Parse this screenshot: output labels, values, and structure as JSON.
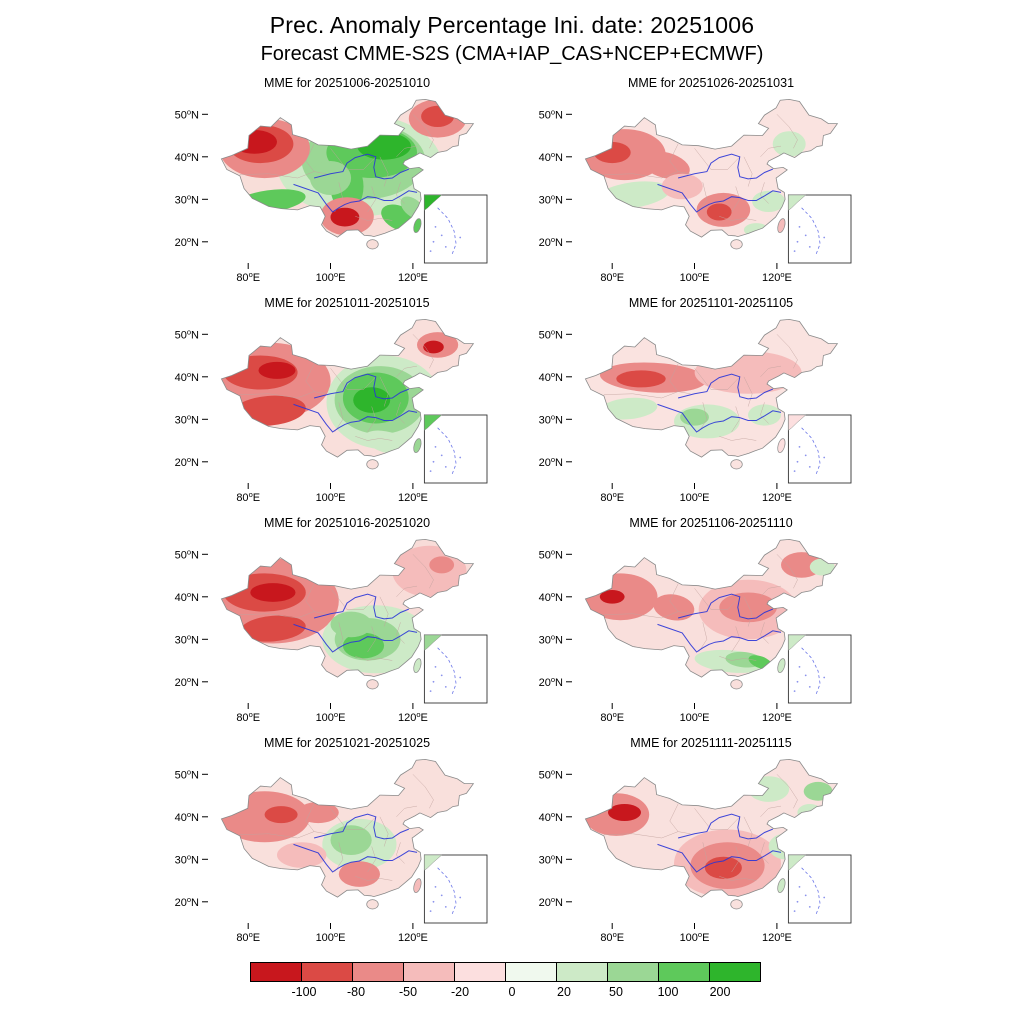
{
  "title": "Prec. Anomaly Percentage Ini. date: 20251006",
  "subtitle": "Forecast CMME-S2S (CMA+IAP_CAS+NCEP+ECMWF)",
  "chart_data": {
    "type": "heatmap",
    "variable": "Precipitation anomaly percentage (%)",
    "region": "China",
    "extent": {
      "lon": [
        70,
        138
      ],
      "lat": [
        15,
        55
      ]
    },
    "x_ticks": [
      {
        "lon": 80,
        "label": "80°E"
      },
      {
        "lon": 100,
        "label": "100°E"
      },
      {
        "lon": 120,
        "label": "120°E"
      }
    ],
    "y_ticks": [
      {
        "lat": 50,
        "label": "50°N"
      },
      {
        "lat": 40,
        "label": "40°N"
      },
      {
        "lat": 30,
        "label": "30°N"
      },
      {
        "lat": 20,
        "label": "20°N"
      }
    ],
    "colorbar": {
      "labels": [
        "-100",
        "-80",
        "-50",
        "-20",
        "0",
        "20",
        "50",
        "100",
        "200"
      ],
      "colors": [
        "#c8171d",
        "#db4a45",
        "#ea8a88",
        "#f5bcbb",
        "#fcdfdf",
        "#f0f9ee",
        "#cdeac7",
        "#9bd795",
        "#5ec95b",
        "#2eb52c"
      ]
    },
    "panels": [
      {
        "title": "MME for 20251006-20251010",
        "base": "#f8ded9",
        "taiwan": "#5ec95b",
        "inset_fill": "#2eb52c",
        "blobs": [
          [
            107,
            38,
            20,
            12,
            "#cdeac7",
            0
          ],
          [
            108,
            39,
            15,
            9,
            "#9bd795",
            0
          ],
          [
            110,
            41,
            11,
            6,
            "#5ec95b",
            0
          ],
          [
            113,
            42.5,
            6.5,
            3.2,
            "#2eb52c",
            0
          ],
          [
            104,
            33,
            4,
            6,
            "#5ec95b",
            0
          ],
          [
            100,
            35,
            5,
            4,
            "#9bd795",
            0
          ],
          [
            85,
            29.5,
            9,
            2.6,
            "#5ec95b",
            -8
          ],
          [
            84,
            42,
            11,
            7,
            "#ea8a88",
            0
          ],
          [
            83,
            43,
            8,
            4.5,
            "#db4a45",
            0
          ],
          [
            81.5,
            43.5,
            5.5,
            2.8,
            "#c8171d",
            0
          ],
          [
            126,
            49,
            7,
            4.5,
            "#ea8a88",
            0
          ],
          [
            126,
            49.5,
            4,
            2.5,
            "#db4a45",
            0
          ],
          [
            104,
            26,
            6.5,
            4.5,
            "#ea8a88",
            0
          ],
          [
            103.5,
            25.8,
            3.5,
            2.2,
            "#c8171d",
            0
          ],
          [
            117,
            25.5,
            5,
            2.8,
            "#5ec95b",
            25
          ],
          [
            120,
            28,
            3.5,
            2,
            "#9bd795",
            40
          ]
        ]
      },
      {
        "title": "MME for 20251026-20251031",
        "base": "#fae3e0",
        "taiwan": "#f5bcbb",
        "inset_fill": "#cdeac7",
        "blobs": [
          [
            83,
            40.5,
            10,
            6,
            "#ea8a88",
            0
          ],
          [
            80,
            41,
            4.5,
            2.5,
            "#db4a45",
            0
          ],
          [
            93,
            38,
            6,
            3,
            "#ea8a88",
            15
          ],
          [
            85,
            31,
            9,
            3,
            "#cdeac7",
            -8
          ],
          [
            107,
            27.5,
            6.5,
            4,
            "#ea8a88",
            0
          ],
          [
            106,
            27,
            3,
            2,
            "#db4a45",
            0
          ],
          [
            118,
            29.5,
            4,
            2.5,
            "#cdeac7",
            0
          ],
          [
            123,
            43,
            4,
            3,
            "#cdeac7",
            0
          ],
          [
            115,
            22.8,
            3,
            1.6,
            "#cdeac7",
            0
          ],
          [
            97,
            33,
            5,
            3,
            "#f5bcbb",
            0
          ]
        ]
      },
      {
        "title": "MME for 20251011-20251015",
        "base": "#f9dfdb",
        "taiwan": "#9bd795",
        "inset_fill": "#5ec95b",
        "blobs": [
          [
            85,
            39,
            15,
            9,
            "#ea8a88",
            0
          ],
          [
            83,
            41,
            9,
            4,
            "#db4a45",
            0
          ],
          [
            87,
            41.5,
            4.5,
            2,
            "#c8171d",
            0
          ],
          [
            85,
            32,
            9,
            3.5,
            "#db4a45",
            -5
          ],
          [
            113,
            34,
            14,
            11,
            "#cdeac7",
            0
          ],
          [
            112,
            34.5,
            11,
            8,
            "#9bd795",
            0
          ],
          [
            111,
            35,
            8,
            6,
            "#5ec95b",
            0
          ],
          [
            110,
            34.5,
            4.5,
            3,
            "#2eb52c",
            0
          ],
          [
            126,
            47.5,
            5,
            3,
            "#ea8a88",
            0
          ],
          [
            125,
            47,
            2.5,
            1.5,
            "#c8171d",
            0
          ],
          [
            114,
            24.5,
            6,
            2.5,
            "#cdeac7",
            15
          ]
        ]
      },
      {
        "title": "MME for 20251101-20251105",
        "base": "#fae3e0",
        "taiwan": "#fcdfdf",
        "inset_fill": "#fcdfdf",
        "blobs": [
          [
            90,
            39.8,
            13,
            3.5,
            "#ea8a88",
            3
          ],
          [
            87,
            39.5,
            6,
            2,
            "#db4a45",
            0
          ],
          [
            113,
            41,
            13,
            5,
            "#f5bcbb",
            0
          ],
          [
            103,
            29.5,
            8,
            4,
            "#cdeac7",
            0
          ],
          [
            100,
            30.5,
            3.5,
            2,
            "#9bd795",
            0
          ],
          [
            117,
            31,
            4,
            2.5,
            "#cdeac7",
            0
          ],
          [
            84,
            32.5,
            7,
            2.5,
            "#cdeac7",
            -5
          ]
        ]
      },
      {
        "title": "MME for 20251016-20251020",
        "base": "#f8dcd8",
        "taiwan": "#cdeac7",
        "inset_fill": "#9bd795",
        "blobs": [
          [
            86,
            39,
            16,
            10,
            "#ea8a88",
            0
          ],
          [
            84,
            41,
            10,
            4.5,
            "#db4a45",
            0
          ],
          [
            86,
            41,
            5.5,
            2.2,
            "#c8171d",
            0
          ],
          [
            86,
            32.5,
            8,
            3,
            "#db4a45",
            -5
          ],
          [
            111,
            30,
            13,
            8,
            "#cdeac7",
            0
          ],
          [
            109,
            30,
            8,
            5,
            "#9bd795",
            0
          ],
          [
            108,
            28.5,
            5,
            3,
            "#5ec95b",
            0
          ],
          [
            105,
            33.5,
            5,
            3,
            "#9bd795",
            0
          ],
          [
            124,
            46,
            9,
            6,
            "#f5bcbb",
            0
          ],
          [
            127,
            47.5,
            3,
            2,
            "#ea8a88",
            0
          ]
        ]
      },
      {
        "title": "MME for 20251106-20251110",
        "base": "#f9dfdc",
        "taiwan": "#cdeac7",
        "inset_fill": "#cdeac7",
        "blobs": [
          [
            82,
            40,
            9,
            5.5,
            "#ea8a88",
            0
          ],
          [
            80,
            40,
            3,
            1.6,
            "#c8171d",
            0
          ],
          [
            95,
            37.5,
            5,
            3,
            "#ea8a88",
            10
          ],
          [
            113,
            37,
            12,
            7,
            "#f5bcbb",
            0
          ],
          [
            113,
            37.5,
            7,
            3.5,
            "#ea8a88",
            0
          ],
          [
            126,
            47.5,
            5,
            3,
            "#ea8a88",
            0
          ],
          [
            109,
            24.8,
            9,
            2.6,
            "#cdeac7",
            5
          ],
          [
            112,
            25.2,
            4.5,
            1.8,
            "#9bd795",
            5
          ],
          [
            116,
            24.6,
            3,
            1.4,
            "#5ec95b",
            20
          ],
          [
            131,
            47,
            3,
            2,
            "#cdeac7",
            0
          ]
        ]
      },
      {
        "title": "MME for 20251021-20251025",
        "base": "#f9e0dc",
        "taiwan": "#f5bcbb",
        "inset_fill": "#cdeac7",
        "blobs": [
          [
            84,
            40,
            11,
            6,
            "#ea8a88",
            0
          ],
          [
            88,
            40.5,
            4,
            2,
            "#db4a45",
            0
          ],
          [
            97,
            41,
            5,
            2.5,
            "#ea8a88",
            0
          ],
          [
            107,
            33.5,
            9,
            6,
            "#cdeac7",
            0
          ],
          [
            105,
            34.5,
            5,
            3.5,
            "#9bd795",
            0
          ],
          [
            107,
            26.5,
            5,
            3,
            "#ea8a88",
            0
          ],
          [
            93,
            31,
            6,
            3,
            "#f5bcbb",
            0
          ]
        ]
      },
      {
        "title": "MME for 20251111-20251115",
        "base": "#f9e1de",
        "taiwan": "#cdeac7",
        "inset_fill": "#cdeac7",
        "blobs": [
          [
            81,
            40.5,
            8,
            5,
            "#ea8a88",
            0
          ],
          [
            83,
            41,
            4,
            2,
            "#c8171d",
            0
          ],
          [
            108,
            29,
            13,
            8,
            "#f5bcbb",
            0
          ],
          [
            108,
            28.5,
            9,
            5.5,
            "#ea8a88",
            0
          ],
          [
            107,
            28,
            4.5,
            2.6,
            "#db4a45",
            0
          ],
          [
            122,
            33,
            4,
            3,
            "#cdeac7",
            0
          ],
          [
            118,
            46.5,
            5,
            3,
            "#cdeac7",
            0
          ],
          [
            130,
            46,
            3.5,
            2.2,
            "#9bd795",
            0
          ],
          [
            128,
            41,
            3,
            2,
            "#cdeac7",
            0
          ]
        ]
      }
    ]
  }
}
